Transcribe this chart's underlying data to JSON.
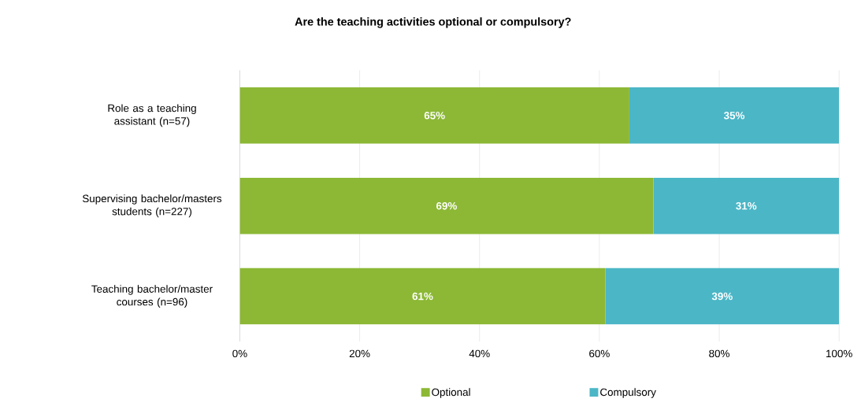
{
  "chart_data": {
    "type": "bar",
    "orientation": "horizontal",
    "stacked": true,
    "title": "Are the teaching activities optional or compulsory?",
    "categories": [
      "Role as a teaching assistant (n=57)",
      "Supervising bachelor/masters students (n=227)",
      "Teaching bachelor/master courses (n=96)"
    ],
    "series": [
      {
        "name": "Optional",
        "color": "#8cb835",
        "values": [
          65,
          69,
          61
        ],
        "value_labels": [
          "65%",
          "69%",
          "61%"
        ]
      },
      {
        "name": "Compulsory",
        "color": "#4bb6c6",
        "values": [
          35,
          31,
          39
        ],
        "value_labels": [
          "35%",
          "31%",
          "39%"
        ]
      }
    ],
    "xlim": [
      0,
      100
    ],
    "xticks": [
      {
        "value": 0,
        "label": "0%"
      },
      {
        "value": 20,
        "label": "20%"
      },
      {
        "value": 40,
        "label": "40%"
      },
      {
        "value": 60,
        "label": "60%"
      },
      {
        "value": 80,
        "label": "80%"
      },
      {
        "value": 100,
        "label": "100%"
      }
    ],
    "grid": "x",
    "legend": "bottom"
  }
}
